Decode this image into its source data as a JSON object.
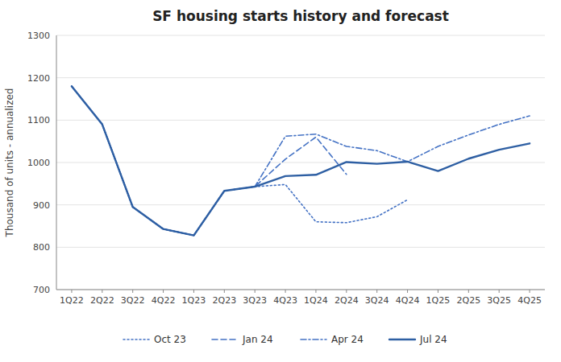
{
  "chart_data": {
    "type": "line",
    "title": "SF housing starts history and forecast",
    "y_label": "Thousand of units - annualized",
    "categories": [
      "1Q22",
      "2Q22",
      "3Q22",
      "4Q22",
      "1Q23",
      "2Q23",
      "3Q23",
      "4Q23",
      "1Q24",
      "2Q24",
      "3Q24",
      "4Q24",
      "1Q25",
      "2Q25",
      "3Q25",
      "4Q25"
    ],
    "series": [
      {
        "name": "Oct 23",
        "color": "#4472c4",
        "line_style": "dotted",
        "values": [
          1180,
          1090,
          895,
          843,
          828,
          933,
          943,
          948,
          860,
          858,
          872,
          912,
          null,
          null,
          null,
          null
        ]
      },
      {
        "name": "Jan 24",
        "color": "#4472c4",
        "line_style": "dashed",
        "values": [
          1180,
          1090,
          895,
          843,
          828,
          933,
          943,
          1008,
          1060,
          972,
          null,
          null,
          null,
          null,
          null,
          null
        ]
      },
      {
        "name": "Apr 24",
        "color": "#4472c4",
        "line_style": "dashdot",
        "values": [
          1180,
          1090,
          895,
          843,
          828,
          933,
          943,
          1062,
          1067,
          1038,
          1028,
          1002,
          1038,
          1065,
          1090,
          1110
        ]
      },
      {
        "name": "Jul 24",
        "color": "#2e5fa3",
        "line_style": "solid",
        "values": [
          1180,
          1090,
          895,
          843,
          828,
          933,
          943,
          968,
          971,
          1001,
          997,
          1002,
          980,
          1009,
          1030,
          1045
        ]
      }
    ],
    "ylim": [
      700,
      1300
    ],
    "yticks": [
      700,
      800,
      900,
      1000,
      1100,
      1200,
      1300
    ],
    "grid": true,
    "legend": "bottom"
  }
}
